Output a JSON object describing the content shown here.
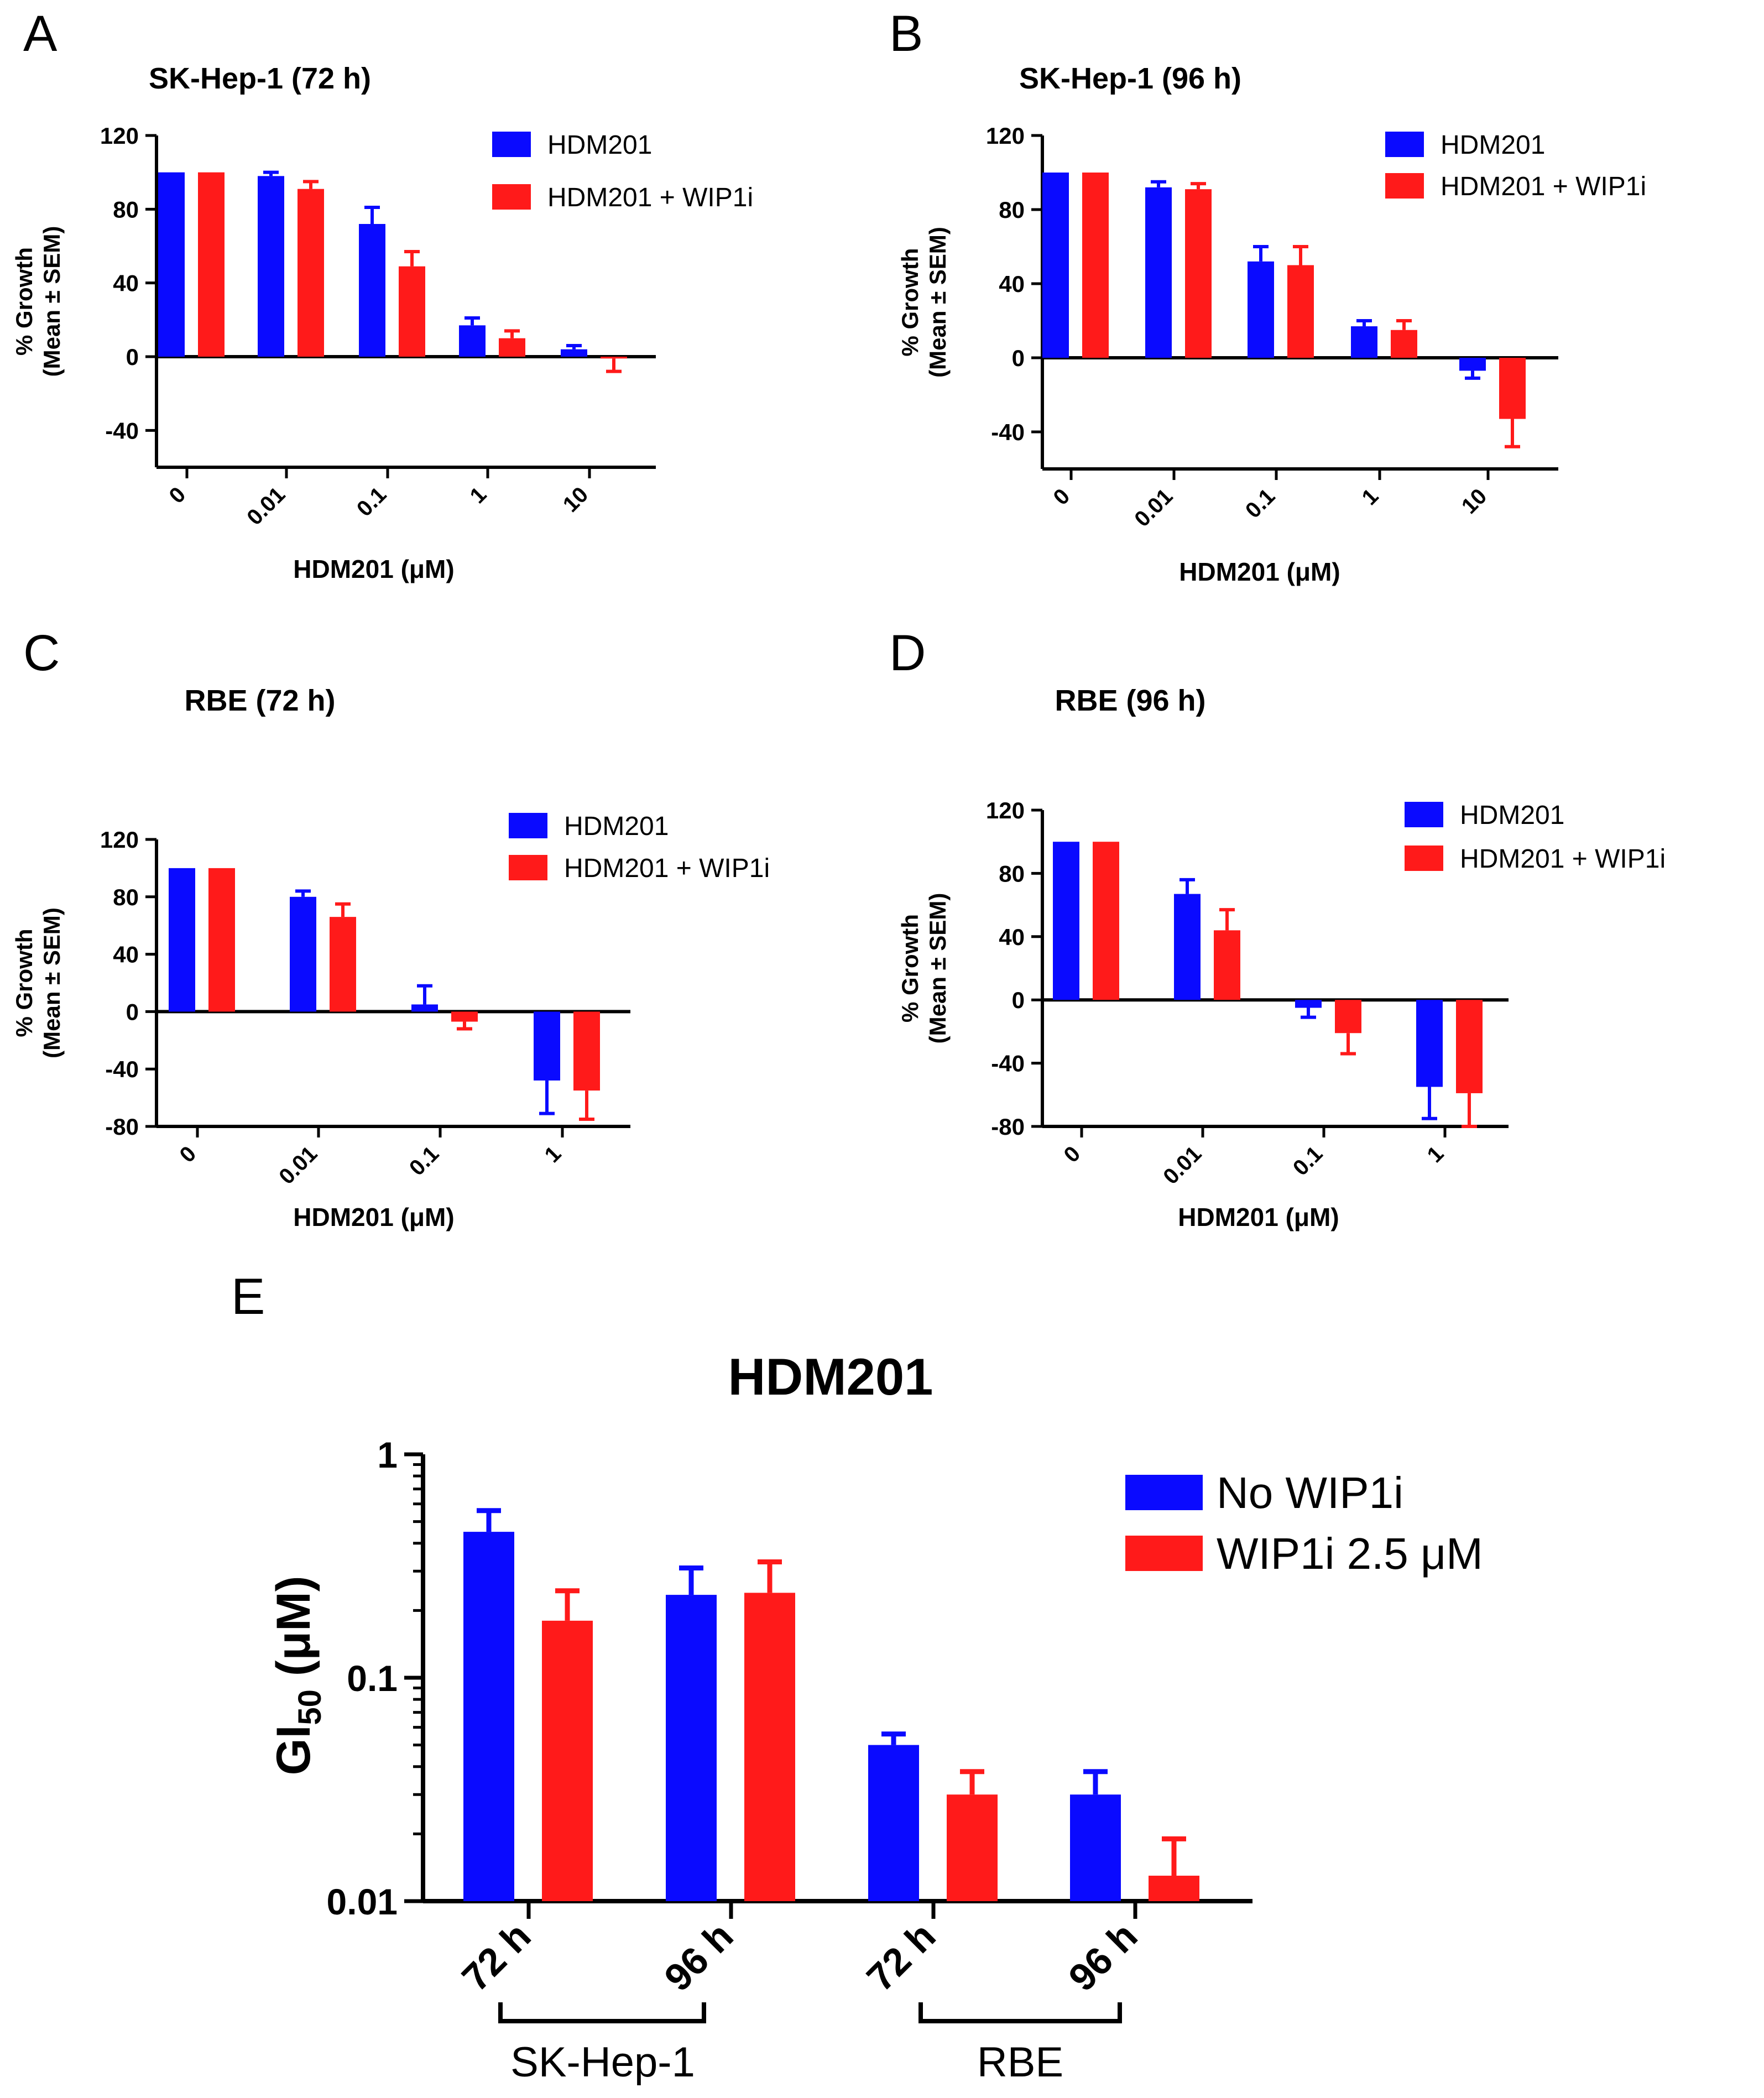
{
  "colors": {
    "blue": "#0a0aff",
    "red": "#ff1a1a",
    "axis": "#000000"
  },
  "chart_data": [
    {
      "id": "A",
      "panel_label": "A",
      "type": "bar",
      "title": "SK-Hep-1 (72 h)",
      "xlabel": "HDM201 (μM)",
      "ylabel_line1": "% Growth",
      "ylabel_line2": "(Mean ± SEM)",
      "categories": [
        "0",
        "0.01",
        "0.1",
        "1",
        "10"
      ],
      "yticks": [
        "120",
        "80",
        "40",
        "0",
        "-40"
      ],
      "ylim": [
        -60,
        120
      ],
      "series": [
        {
          "name": "HDM201",
          "color": "#0a0aff",
          "values": [
            100,
            98,
            72,
            17,
            4
          ],
          "errors": [
            0,
            2,
            9,
            4,
            2
          ]
        },
        {
          "name": "HDM201 + WIP1i",
          "color": "#ff1a1a",
          "values": [
            100,
            91,
            49,
            10,
            -1
          ],
          "errors": [
            0,
            4,
            8,
            4,
            7
          ]
        }
      ],
      "legend": [
        "HDM201",
        "HDM201 + WIP1i"
      ]
    },
    {
      "id": "B",
      "panel_label": "B",
      "type": "bar",
      "title": "SK-Hep-1 (96 h)",
      "xlabel": "HDM201 (μM)",
      "ylabel_line1": "% Growth",
      "ylabel_line2": "(Mean ± SEM)",
      "categories": [
        "0",
        "0.01",
        "0.1",
        "1",
        "10"
      ],
      "yticks": [
        "120",
        "80",
        "40",
        "0",
        "-40"
      ],
      "ylim": [
        -60,
        120
      ],
      "series": [
        {
          "name": "HDM201",
          "color": "#0a0aff",
          "values": [
            100,
            92,
            52,
            17,
            -7
          ],
          "errors": [
            0,
            3,
            8,
            3,
            4
          ]
        },
        {
          "name": "HDM201 + WIP1i",
          "color": "#ff1a1a",
          "values": [
            100,
            91,
            50,
            15,
            -33
          ],
          "errors": [
            0,
            3,
            10,
            5,
            15
          ]
        }
      ],
      "legend": [
        "HDM201",
        "HDM201 + WIP1i"
      ]
    },
    {
      "id": "C",
      "panel_label": "C",
      "type": "bar",
      "title": "RBE (72 h)",
      "xlabel": "HDM201 (μM)",
      "ylabel_line1": "% Growth",
      "ylabel_line2": "(Mean ± SEM)",
      "categories": [
        "0",
        "0.01",
        "0.1",
        "1"
      ],
      "yticks": [
        "120",
        "80",
        "40",
        "0",
        "-40",
        "-80"
      ],
      "ylim": [
        -80,
        120
      ],
      "series": [
        {
          "name": "HDM201",
          "color": "#0a0aff",
          "values": [
            100,
            80,
            5,
            -48
          ],
          "errors": [
            0,
            4,
            13,
            23
          ]
        },
        {
          "name": "HDM201 + WIP1i",
          "color": "#ff1a1a",
          "values": [
            100,
            66,
            -7,
            -55
          ],
          "errors": [
            0,
            9,
            5,
            20
          ]
        }
      ],
      "legend": [
        "HDM201",
        "HDM201 + WIP1i"
      ]
    },
    {
      "id": "D",
      "panel_label": "D",
      "type": "bar",
      "title": "RBE (96 h)",
      "xlabel": "HDM201 (μM)",
      "ylabel_line1": "% Growth",
      "ylabel_line2": "(Mean ± SEM)",
      "categories": [
        "0",
        "0.01",
        "0.1",
        "1"
      ],
      "yticks": [
        "120",
        "80",
        "40",
        "0",
        "-40",
        "-80"
      ],
      "ylim": [
        -80,
        120
      ],
      "series": [
        {
          "name": "HDM201",
          "color": "#0a0aff",
          "values": [
            100,
            67,
            -5,
            -55
          ],
          "errors": [
            0,
            9,
            6,
            20
          ]
        },
        {
          "name": "HDM201 + WIP1i",
          "color": "#ff1a1a",
          "values": [
            100,
            44,
            -21,
            -59
          ],
          "errors": [
            0,
            13,
            13,
            21
          ]
        }
      ],
      "legend": [
        "HDM201",
        "HDM201 + WIP1i"
      ]
    },
    {
      "id": "E",
      "panel_label": "E",
      "type": "bar",
      "yscale": "log",
      "title": "HDM201",
      "ylabel": "GI",
      "ylabel_sub": "50",
      "ylabel_unit": " (μM)",
      "categories": [
        "72 h",
        "96 h",
        "72 h",
        "96 h"
      ],
      "groups": [
        {
          "label": "SK-Hep-1",
          "categories": [
            0,
            1
          ]
        },
        {
          "label": "RBE",
          "categories": [
            2,
            3
          ]
        }
      ],
      "yticks": [
        "1",
        "0.1",
        "0.01"
      ],
      "ylim": [
        0.01,
        1
      ],
      "series": [
        {
          "name": "No WIP1i",
          "color": "#0a0aff",
          "values": [
            0.45,
            0.235,
            0.05,
            0.03
          ],
          "errors": [
            0.11,
            0.075,
            0.006,
            0.008
          ]
        },
        {
          "name": "WIP1i 2.5 μM",
          "color": "#ff1a1a",
          "values": [
            0.18,
            0.24,
            0.03,
            0.013
          ],
          "errors": [
            0.065,
            0.09,
            0.008,
            0.006
          ]
        }
      ],
      "legend": [
        "No WIP1i",
        "WIP1i 2.5 μM"
      ]
    }
  ]
}
